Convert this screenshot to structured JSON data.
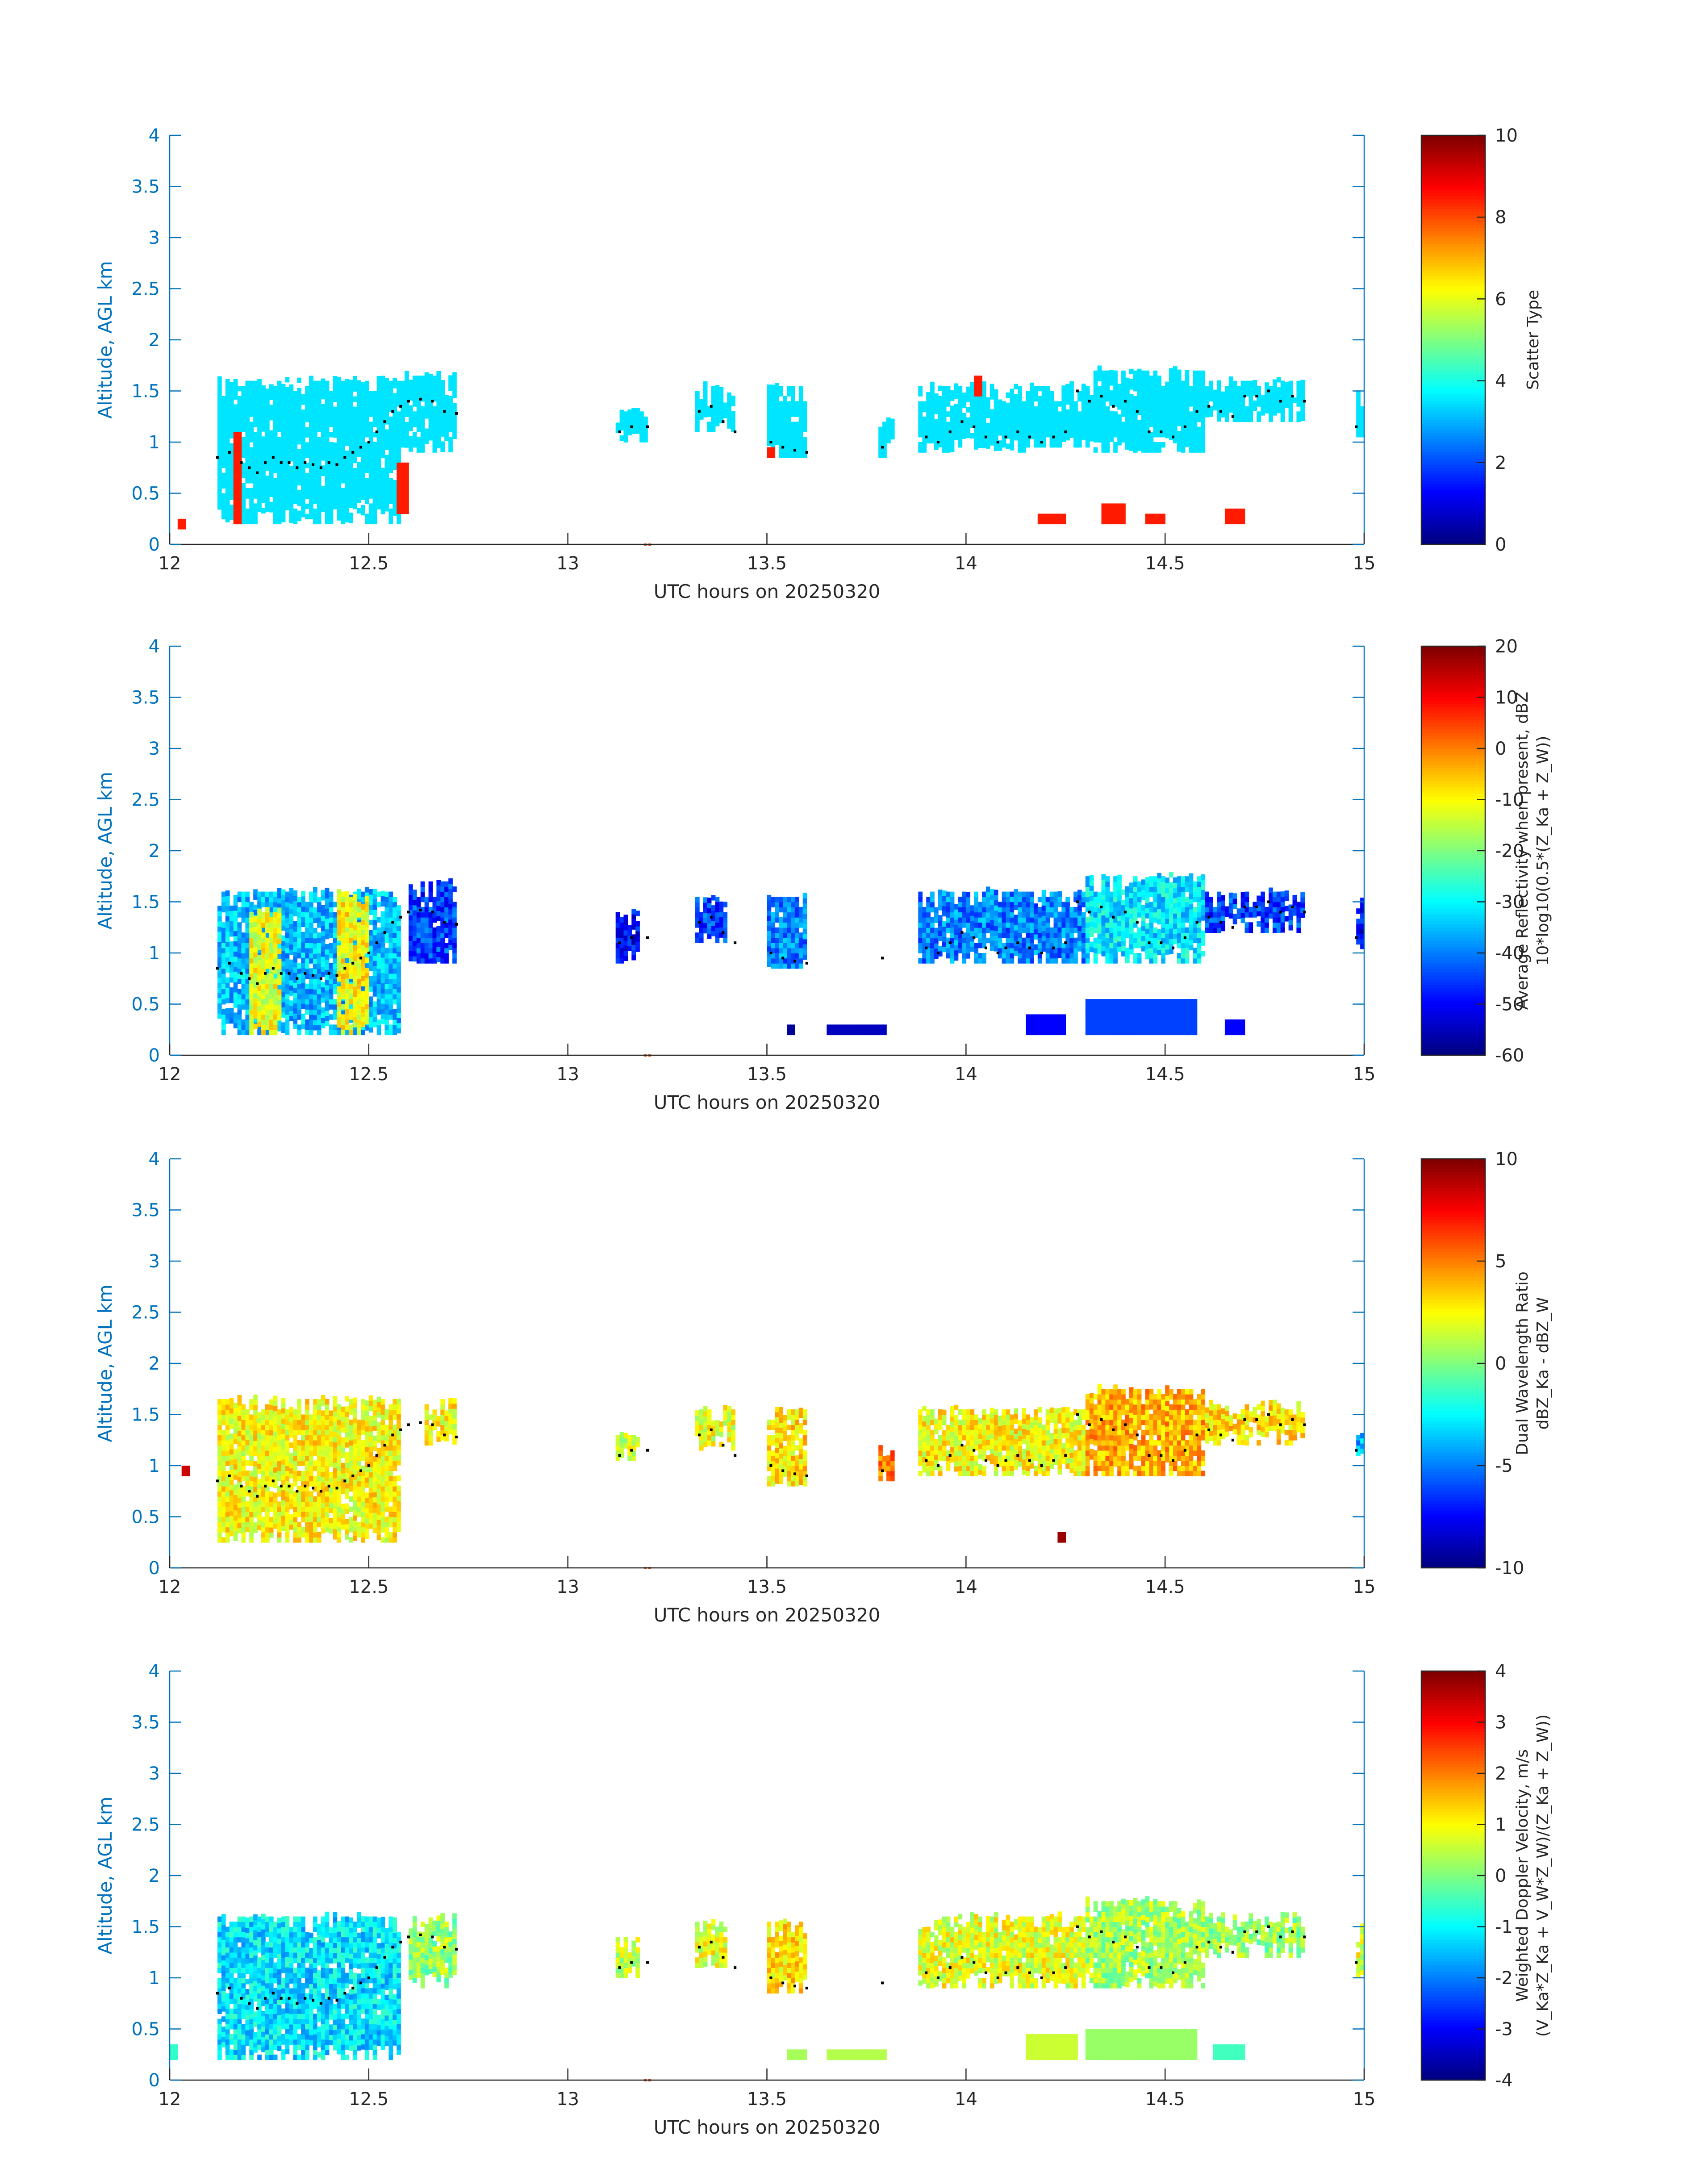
{
  "figure": {
    "axis_color": "#0072BD",
    "text_color": "#262626",
    "marker_color": "#D95319",
    "missing_color": "#ffffff"
  },
  "chart_data": [
    {
      "type": "heatmap",
      "title": "",
      "xlabel": "UTC hours on 20250320",
      "ylabel": "Altitude, AGL km",
      "xlim": [
        12,
        15
      ],
      "ylim": [
        0,
        4
      ],
      "xticks": [
        "12",
        "12.5",
        "13",
        "13.5",
        "14",
        "14.5",
        "15"
      ],
      "yticks": [
        "0",
        "0.5",
        "1",
        "1.5",
        "2",
        "2.5",
        "3",
        "3.5",
        "4"
      ],
      "colorbar": {
        "label_lines": [
          "Scatter Type"
        ],
        "colormap": "jet",
        "clim": [
          0,
          10
        ],
        "ticks": [
          "0",
          "2",
          "4",
          "6",
          "8",
          "10"
        ]
      },
      "cloud_regions": [
        {
          "x": [
            12.12,
            12.58
          ],
          "bottom": 0.2,
          "top": 1.6,
          "value": 3.5
        },
        {
          "x": [
            12.58,
            12.72
          ],
          "bottom": 0.9,
          "top": 1.65,
          "value": 3.5
        },
        {
          "x": [
            13.12,
            13.2
          ],
          "bottom": 1.0,
          "top": 1.3,
          "value": 3.5
        },
        {
          "x": [
            13.32,
            13.42
          ],
          "bottom": 1.1,
          "top": 1.55,
          "value": 3.5
        },
        {
          "x": [
            13.5,
            13.6
          ],
          "bottom": 0.85,
          "top": 1.55,
          "value": 3.5
        },
        {
          "x": [
            13.78,
            13.82
          ],
          "bottom": 0.85,
          "top": 1.2,
          "value": 3.5
        },
        {
          "x": [
            13.88,
            14.15
          ],
          "bottom": 0.9,
          "top": 1.55,
          "value": 3.5
        },
        {
          "x": [
            14.15,
            14.32
          ],
          "bottom": 0.95,
          "top": 1.55,
          "value": 3.5
        },
        {
          "x": [
            14.32,
            14.6
          ],
          "bottom": 0.9,
          "top": 1.7,
          "value": 3.5
        },
        {
          "x": [
            14.6,
            14.85
          ],
          "bottom": 1.2,
          "top": 1.6,
          "value": 3.5
        },
        {
          "x": [
            14.98,
            15.0
          ],
          "bottom": 1.05,
          "top": 1.5,
          "value": 3.5
        }
      ],
      "precip_regions": [
        {
          "x": [
            12.02,
            12.04
          ],
          "bottom": 0.15,
          "top": 0.25,
          "value": 8.5
        },
        {
          "x": [
            12.16,
            12.18
          ],
          "bottom": 0.2,
          "top": 1.1,
          "value": 8.5
        },
        {
          "x": [
            12.57,
            12.6
          ],
          "bottom": 0.3,
          "top": 0.8,
          "value": 8.5
        },
        {
          "x": [
            13.5,
            13.52
          ],
          "bottom": 0.85,
          "top": 0.95,
          "value": 8.5
        },
        {
          "x": [
            14.02,
            14.04
          ],
          "bottom": 1.45,
          "top": 1.65,
          "value": 8.5
        },
        {
          "x": [
            14.18,
            14.25
          ],
          "bottom": 0.2,
          "top": 0.3,
          "value": 8.5
        },
        {
          "x": [
            14.34,
            14.4
          ],
          "bottom": 0.2,
          "top": 0.4,
          "value": 8.5
        },
        {
          "x": [
            14.45,
            14.5
          ],
          "bottom": 0.2,
          "top": 0.3,
          "value": 8.5
        },
        {
          "x": [
            14.65,
            14.7
          ],
          "bottom": 0.2,
          "top": 0.35,
          "value": 8.5
        }
      ]
    },
    {
      "type": "heatmap",
      "title": "",
      "xlabel": "UTC hours on 20250320",
      "ylabel": "Altitude, AGL km",
      "xlim": [
        12,
        15
      ],
      "ylim": [
        0,
        4
      ],
      "xticks": [
        "12",
        "12.5",
        "13",
        "13.5",
        "14",
        "14.5",
        "15"
      ],
      "yticks": [
        "0",
        "0.5",
        "1",
        "1.5",
        "2",
        "2.5",
        "3",
        "3.5",
        "4"
      ],
      "colorbar": {
        "label_lines": [
          "Average Reflectivity when present, dBZ",
          "10*log10(0.5*(Z_Ka + Z_W))"
        ],
        "colormap": "jet",
        "clim": [
          -60,
          20
        ],
        "ticks": [
          "-60",
          "-50",
          "-40",
          "-30",
          "-20",
          "-10",
          "0",
          "10",
          "20"
        ]
      },
      "cloud_regions": [
        {
          "x": [
            12.12,
            12.58
          ],
          "bottom": 0.2,
          "top": 1.6,
          "value": -35
        },
        {
          "x": [
            12.2,
            12.28
          ],
          "bottom": 0.2,
          "top": 1.4,
          "value": -12
        },
        {
          "x": [
            12.42,
            12.5
          ],
          "bottom": 0.2,
          "top": 1.6,
          "value": -10
        },
        {
          "x": [
            12.6,
            12.72
          ],
          "bottom": 0.9,
          "top": 1.7,
          "value": -45
        },
        {
          "x": [
            13.12,
            13.18
          ],
          "bottom": 0.9,
          "top": 1.4,
          "value": -50
        },
        {
          "x": [
            13.32,
            13.4
          ],
          "bottom": 1.1,
          "top": 1.55,
          "value": -45
        },
        {
          "x": [
            13.5,
            13.6
          ],
          "bottom": 0.85,
          "top": 1.55,
          "value": -40
        },
        {
          "x": [
            13.88,
            14.3
          ],
          "bottom": 0.9,
          "top": 1.6,
          "value": -40
        },
        {
          "x": [
            14.3,
            14.6
          ],
          "bottom": 0.9,
          "top": 1.75,
          "value": -32
        },
        {
          "x": [
            14.6,
            14.85
          ],
          "bottom": 1.2,
          "top": 1.6,
          "value": -45
        },
        {
          "x": [
            14.98,
            15.0
          ],
          "bottom": 1.0,
          "top": 1.5,
          "value": -50
        }
      ],
      "precip_regions": [
        {
          "x": [
            13.55,
            13.57
          ],
          "bottom": 0.2,
          "top": 0.3,
          "value": -58
        },
        {
          "x": [
            13.65,
            13.8
          ],
          "bottom": 0.2,
          "top": 0.3,
          "value": -55
        },
        {
          "x": [
            14.15,
            14.25
          ],
          "bottom": 0.2,
          "top": 0.4,
          "value": -50
        },
        {
          "x": [
            14.3,
            14.58
          ],
          "bottom": 0.2,
          "top": 0.55,
          "value": -45
        },
        {
          "x": [
            14.65,
            14.7
          ],
          "bottom": 0.2,
          "top": 0.35,
          "value": -50
        }
      ]
    },
    {
      "type": "heatmap",
      "title": "",
      "xlabel": "UTC hours on 20250320",
      "ylabel": "Altitude, AGL km",
      "xlim": [
        12,
        15
      ],
      "ylim": [
        0,
        4
      ],
      "xticks": [
        "12",
        "12.5",
        "13",
        "13.5",
        "14",
        "14.5",
        "15"
      ],
      "yticks": [
        "0",
        "0.5",
        "1",
        "1.5",
        "2",
        "2.5",
        "3",
        "3.5",
        "4"
      ],
      "colorbar": {
        "label_lines": [
          "Dual Wavelength Ratio",
          "dBZ_Ka - dBZ_W"
        ],
        "colormap": "jet",
        "clim": [
          -10,
          10
        ],
        "ticks": [
          "-10",
          "-5",
          "0",
          "5",
          "10"
        ]
      },
      "cloud_regions": [
        {
          "x": [
            12.12,
            12.58
          ],
          "bottom": 0.25,
          "top": 1.65,
          "value": 2.5
        },
        {
          "x": [
            12.64,
            12.72
          ],
          "bottom": 1.2,
          "top": 1.65,
          "value": 2.5
        },
        {
          "x": [
            13.12,
            13.18
          ],
          "bottom": 1.05,
          "top": 1.3,
          "value": 1.5
        },
        {
          "x": [
            13.32,
            13.42
          ],
          "bottom": 1.15,
          "top": 1.55,
          "value": 2
        },
        {
          "x": [
            13.5,
            13.6
          ],
          "bottom": 0.8,
          "top": 1.55,
          "value": 3
        },
        {
          "x": [
            13.78,
            13.82
          ],
          "bottom": 0.85,
          "top": 1.2,
          "value": 5
        },
        {
          "x": [
            13.88,
            14.3
          ],
          "bottom": 0.9,
          "top": 1.55,
          "value": 2.5
        },
        {
          "x": [
            14.3,
            14.6
          ],
          "bottom": 0.9,
          "top": 1.75,
          "value": 4
        },
        {
          "x": [
            14.6,
            14.85
          ],
          "bottom": 1.2,
          "top": 1.6,
          "value": 3
        },
        {
          "x": [
            14.98,
            15.0
          ],
          "bottom": 1.1,
          "top": 1.4,
          "value": -4
        }
      ],
      "precip_regions": [
        {
          "x": [
            12.03,
            12.05
          ],
          "bottom": 0.9,
          "top": 1.0,
          "value": 8.5
        },
        {
          "x": [
            14.23,
            14.25
          ],
          "bottom": 0.25,
          "top": 0.35,
          "value": 9.5
        }
      ]
    },
    {
      "type": "heatmap",
      "title": "",
      "xlabel": "UTC hours on 20250320",
      "ylabel": "Altitude, AGL km",
      "xlim": [
        12,
        15
      ],
      "ylim": [
        0,
        4
      ],
      "xticks": [
        "12",
        "12.5",
        "13",
        "13.5",
        "14",
        "14.5",
        "15"
      ],
      "yticks": [
        "0",
        "0.5",
        "1",
        "1.5",
        "2",
        "2.5",
        "3",
        "3.5",
        "4"
      ],
      "colorbar": {
        "label_lines": [
          "Weighted Doppler Velocity, m/s",
          "(V_Ka*Z_Ka + V_W*Z_W)/(Z_Ka + Z_W))"
        ],
        "colormap": "jet",
        "clim": [
          -4,
          4
        ],
        "ticks": [
          "-4",
          "-3",
          "-2",
          "-1",
          "0",
          "1",
          "2",
          "3",
          "4"
        ]
      },
      "cloud_regions": [
        {
          "x": [
            12.12,
            12.58
          ],
          "bottom": 0.2,
          "top": 1.6,
          "value": -1.2
        },
        {
          "x": [
            12.6,
            12.72
          ],
          "bottom": 0.9,
          "top": 1.6,
          "value": 0.2
        },
        {
          "x": [
            13.12,
            13.18
          ],
          "bottom": 1.0,
          "top": 1.4,
          "value": 0.5
        },
        {
          "x": [
            13.32,
            13.4
          ],
          "bottom": 1.1,
          "top": 1.55,
          "value": 0.8
        },
        {
          "x": [
            13.5,
            13.6
          ],
          "bottom": 0.85,
          "top": 1.55,
          "value": 1.2
        },
        {
          "x": [
            13.88,
            14.3
          ],
          "bottom": 0.9,
          "top": 1.6,
          "value": 0.8
        },
        {
          "x": [
            14.3,
            14.6
          ],
          "bottom": 0.9,
          "top": 1.75,
          "value": 0.3
        },
        {
          "x": [
            14.6,
            14.85
          ],
          "bottom": 1.2,
          "top": 1.6,
          "value": 0.2
        },
        {
          "x": [
            14.98,
            15.0
          ],
          "bottom": 1.0,
          "top": 1.5,
          "value": 0.8
        }
      ],
      "precip_regions": [
        {
          "x": [
            12.0,
            12.02
          ],
          "bottom": 0.2,
          "top": 0.35,
          "value": -0.6
        },
        {
          "x": [
            13.55,
            13.6
          ],
          "bottom": 0.2,
          "top": 0.3,
          "value": 0.3
        },
        {
          "x": [
            13.65,
            13.8
          ],
          "bottom": 0.2,
          "top": 0.3,
          "value": 0.4
        },
        {
          "x": [
            14.15,
            14.28
          ],
          "bottom": 0.2,
          "top": 0.45,
          "value": 0.6
        },
        {
          "x": [
            14.3,
            14.58
          ],
          "bottom": 0.2,
          "top": 0.5,
          "value": 0.2
        },
        {
          "x": [
            14.62,
            14.7
          ],
          "bottom": 0.2,
          "top": 0.35,
          "value": -0.5
        }
      ]
    }
  ],
  "cloud_base_dots": {
    "x": [
      12.12,
      12.15,
      12.18,
      12.2,
      12.22,
      12.24,
      12.26,
      12.28,
      12.3,
      12.32,
      12.34,
      12.36,
      12.38,
      12.4,
      12.42,
      12.44,
      12.46,
      12.48,
      12.5,
      12.52,
      12.54,
      12.56,
      12.58,
      12.6,
      12.63,
      12.66,
      12.69,
      12.72,
      13.13,
      13.16,
      13.2,
      13.33,
      13.36,
      13.39,
      13.42,
      13.51,
      13.54,
      13.57,
      13.6,
      13.79,
      13.9,
      13.93,
      13.96,
      13.99,
      14.02,
      14.05,
      14.08,
      14.1,
      14.13,
      14.16,
      14.19,
      14.22,
      14.25,
      14.28,
      14.31,
      14.34,
      14.37,
      14.4,
      14.43,
      14.46,
      14.49,
      14.52,
      14.55,
      14.58,
      14.61,
      14.64,
      14.67,
      14.7,
      14.73,
      14.76,
      14.79,
      14.82,
      14.85,
      14.98
    ],
    "y": [
      0.85,
      0.9,
      0.8,
      0.75,
      0.7,
      0.8,
      0.85,
      0.8,
      0.8,
      0.75,
      0.8,
      0.78,
      0.75,
      0.8,
      0.78,
      0.85,
      0.9,
      0.95,
      1.0,
      1.1,
      1.2,
      1.3,
      1.35,
      1.4,
      1.42,
      1.4,
      1.3,
      1.28,
      1.1,
      1.15,
      1.15,
      1.3,
      1.35,
      1.2,
      1.1,
      1.0,
      0.95,
      0.92,
      0.9,
      0.95,
      1.05,
      1.0,
      1.1,
      1.2,
      1.15,
      1.05,
      1.0,
      1.05,
      1.1,
      1.05,
      1.0,
      1.05,
      1.1,
      1.5,
      1.4,
      1.45,
      1.35,
      1.4,
      1.3,
      1.1,
      1.1,
      1.05,
      1.15,
      1.3,
      1.35,
      1.3,
      1.25,
      1.45,
      1.45,
      1.5,
      1.4,
      1.45,
      1.4,
      1.15
    ]
  }
}
